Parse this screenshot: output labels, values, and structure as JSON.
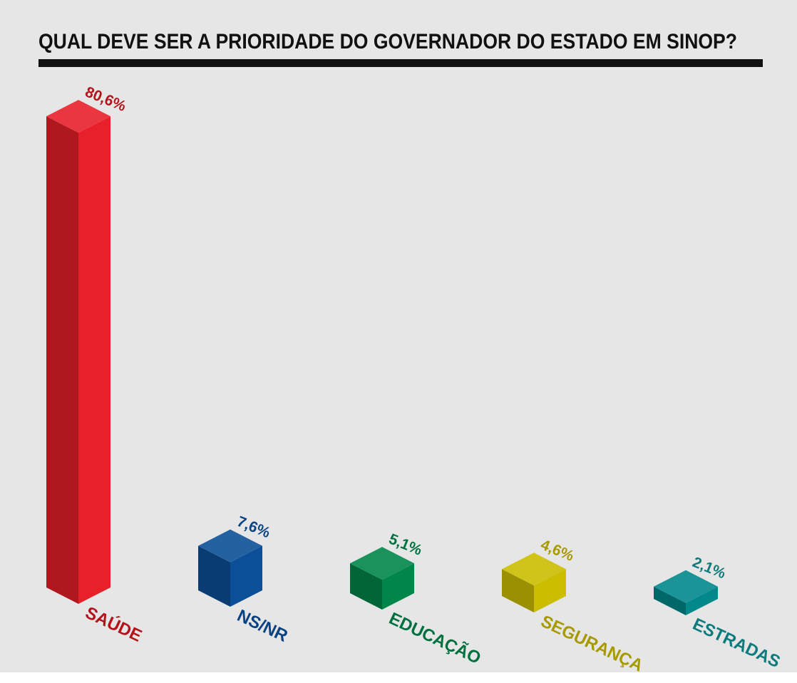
{
  "chart_data": {
    "type": "bar",
    "title": "QUAL DEVE SER A PRIORIDADE DO GOVERNADOR DO ESTADO EM SINOP?",
    "categories": [
      "SAÚDE",
      "NS/NR",
      "EDUCAÇÃO",
      "SEGURANÇA",
      "ESTRADAS"
    ],
    "values": [
      80.6,
      7.6,
      5.1,
      4.6,
      2.1
    ],
    "value_labels": [
      "80,6%",
      "7,6%",
      "5,1%",
      "4,6%",
      "2,1%"
    ],
    "colors": [
      "#e8202a",
      "#0a4f97",
      "#00864a",
      "#cbbd00",
      "#00888a"
    ],
    "label_colors": [
      "#b3141c",
      "#0a4383",
      "#00703f",
      "#a69a00",
      "#0e7a7c"
    ],
    "background": "#e6e6e6",
    "grid": false,
    "legend": "none",
    "style": "3d-isometric"
  }
}
